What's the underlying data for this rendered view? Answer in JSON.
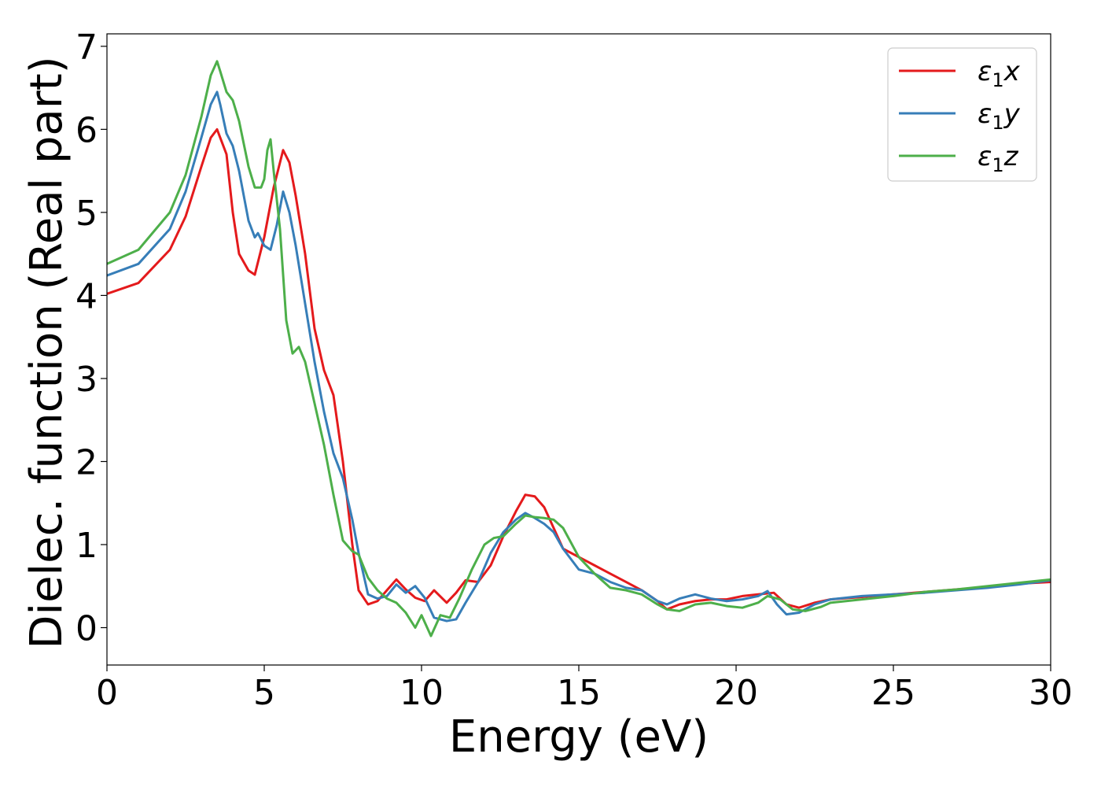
{
  "chart_data": {
    "type": "line",
    "xlabel": "Energy (eV)",
    "ylabel": "Dielec. function (Real part)",
    "xlim": [
      0,
      30
    ],
    "ylim": [
      -0.45,
      7.15
    ],
    "xticks": [
      0,
      5,
      10,
      15,
      20,
      25,
      30
    ],
    "yticks": [
      0,
      1,
      2,
      3,
      4,
      5,
      6,
      7
    ],
    "grid": false,
    "legend_position": "top-right",
    "series": [
      {
        "name": "ε₁x",
        "legend_main": "ε",
        "legend_sub": "1",
        "legend_suffix": "x",
        "color": "#e41a1c",
        "x": [
          0,
          1,
          2,
          2.5,
          3,
          3.3,
          3.5,
          3.6,
          3.8,
          4.0,
          4.2,
          4.5,
          4.7,
          5.0,
          5.3,
          5.6,
          5.8,
          6.0,
          6.3,
          6.6,
          6.9,
          7.2,
          7.5,
          7.8,
          8.0,
          8.3,
          8.6,
          8.9,
          9.2,
          9.5,
          9.8,
          10.1,
          10.4,
          10.8,
          11.1,
          11.4,
          11.8,
          12.2,
          12.6,
          13.0,
          13.3,
          13.6,
          13.9,
          14.2,
          14.5,
          15.0,
          15.5,
          16.0,
          16.5,
          17.0,
          17.5,
          17.8,
          18.2,
          18.7,
          19.2,
          19.7,
          20.2,
          20.7,
          21.2,
          21.6,
          22.0,
          22.5,
          23.0,
          24.0,
          25.0,
          26.0,
          27.0,
          28.0,
          29.0,
          30.0
        ],
        "y": [
          4.02,
          4.15,
          4.55,
          4.95,
          5.55,
          5.9,
          6.0,
          5.9,
          5.7,
          5.0,
          4.5,
          4.3,
          4.25,
          4.7,
          5.3,
          5.75,
          5.6,
          5.2,
          4.5,
          3.6,
          3.1,
          2.8,
          2.0,
          1.0,
          0.45,
          0.28,
          0.32,
          0.45,
          0.58,
          0.46,
          0.36,
          0.32,
          0.45,
          0.3,
          0.42,
          0.57,
          0.55,
          0.75,
          1.1,
          1.4,
          1.6,
          1.58,
          1.45,
          1.2,
          0.95,
          0.85,
          0.75,
          0.65,
          0.55,
          0.45,
          0.32,
          0.22,
          0.28,
          0.32,
          0.34,
          0.34,
          0.38,
          0.4,
          0.42,
          0.28,
          0.24,
          0.3,
          0.34,
          0.37,
          0.4,
          0.43,
          0.46,
          0.49,
          0.53,
          0.55
        ]
      },
      {
        "name": "ε₁y",
        "legend_main": "ε",
        "legend_sub": "1",
        "legend_suffix": "y",
        "color": "#377eb8",
        "x": [
          0,
          1,
          2,
          2.5,
          3,
          3.3,
          3.5,
          3.6,
          3.8,
          4.0,
          4.2,
          4.5,
          4.7,
          4.8,
          5.0,
          5.2,
          5.4,
          5.6,
          5.8,
          6.0,
          6.3,
          6.6,
          6.9,
          7.2,
          7.5,
          7.8,
          8.0,
          8.3,
          8.6,
          8.9,
          9.2,
          9.5,
          9.8,
          10.1,
          10.4,
          10.8,
          11.1,
          11.4,
          11.8,
          12.2,
          12.6,
          13.0,
          13.3,
          13.6,
          13.9,
          14.2,
          14.5,
          15.0,
          15.5,
          16.0,
          16.5,
          17.0,
          17.5,
          17.8,
          18.2,
          18.7,
          19.2,
          19.7,
          20.2,
          20.7,
          21.0,
          21.3,
          21.6,
          22.0,
          22.5,
          23.0,
          24.0,
          25.0,
          26.0,
          27.0,
          28.0,
          29.0,
          30.0
        ],
        "y": [
          4.24,
          4.38,
          4.8,
          5.25,
          5.9,
          6.3,
          6.45,
          6.3,
          5.95,
          5.8,
          5.5,
          4.9,
          4.7,
          4.75,
          4.6,
          4.55,
          4.85,
          5.25,
          5.0,
          4.6,
          3.9,
          3.2,
          2.6,
          2.1,
          1.8,
          1.3,
          0.9,
          0.4,
          0.35,
          0.38,
          0.52,
          0.42,
          0.5,
          0.36,
          0.12,
          0.08,
          0.1,
          0.3,
          0.55,
          0.9,
          1.15,
          1.3,
          1.38,
          1.32,
          1.25,
          1.15,
          0.95,
          0.7,
          0.65,
          0.55,
          0.48,
          0.45,
          0.32,
          0.28,
          0.35,
          0.4,
          0.35,
          0.32,
          0.34,
          0.38,
          0.44,
          0.28,
          0.16,
          0.18,
          0.28,
          0.34,
          0.38,
          0.4,
          0.42,
          0.45,
          0.48,
          0.52,
          0.57
        ]
      },
      {
        "name": "ε₁z",
        "legend_main": "ε",
        "legend_sub": "1",
        "legend_suffix": "z",
        "color": "#4daf4a",
        "x": [
          0,
          1,
          2,
          2.5,
          3,
          3.3,
          3.5,
          3.6,
          3.8,
          4.0,
          4.2,
          4.5,
          4.7,
          4.9,
          5.0,
          5.1,
          5.2,
          5.3,
          5.5,
          5.7,
          5.9,
          6.1,
          6.3,
          6.6,
          6.9,
          7.2,
          7.5,
          7.8,
          8.0,
          8.3,
          8.6,
          8.9,
          9.2,
          9.5,
          9.8,
          10.0,
          10.3,
          10.6,
          10.9,
          11.2,
          11.6,
          12.0,
          12.3,
          12.6,
          13.0,
          13.3,
          13.6,
          13.9,
          14.2,
          14.5,
          15.0,
          15.5,
          16.0,
          16.5,
          17.0,
          17.5,
          17.8,
          18.2,
          18.7,
          19.2,
          19.7,
          20.2,
          20.7,
          21.0,
          21.4,
          21.8,
          22.2,
          22.7,
          23.0,
          24.0,
          25.0,
          26.0,
          27.0,
          28.0,
          29.0,
          30.0
        ],
        "y": [
          4.38,
          4.55,
          5.0,
          5.45,
          6.15,
          6.65,
          6.82,
          6.7,
          6.45,
          6.35,
          6.1,
          5.55,
          5.3,
          5.3,
          5.4,
          5.75,
          5.88,
          5.5,
          4.8,
          3.7,
          3.3,
          3.38,
          3.2,
          2.7,
          2.2,
          1.6,
          1.05,
          0.92,
          0.88,
          0.6,
          0.45,
          0.35,
          0.3,
          0.18,
          0.0,
          0.15,
          -0.1,
          0.15,
          0.12,
          0.35,
          0.7,
          1.0,
          1.08,
          1.1,
          1.25,
          1.35,
          1.33,
          1.32,
          1.3,
          1.2,
          0.85,
          0.65,
          0.48,
          0.45,
          0.4,
          0.28,
          0.22,
          0.2,
          0.28,
          0.3,
          0.26,
          0.24,
          0.3,
          0.38,
          0.34,
          0.22,
          0.2,
          0.25,
          0.3,
          0.34,
          0.38,
          0.43,
          0.46,
          0.5,
          0.54,
          0.58
        ]
      }
    ]
  }
}
